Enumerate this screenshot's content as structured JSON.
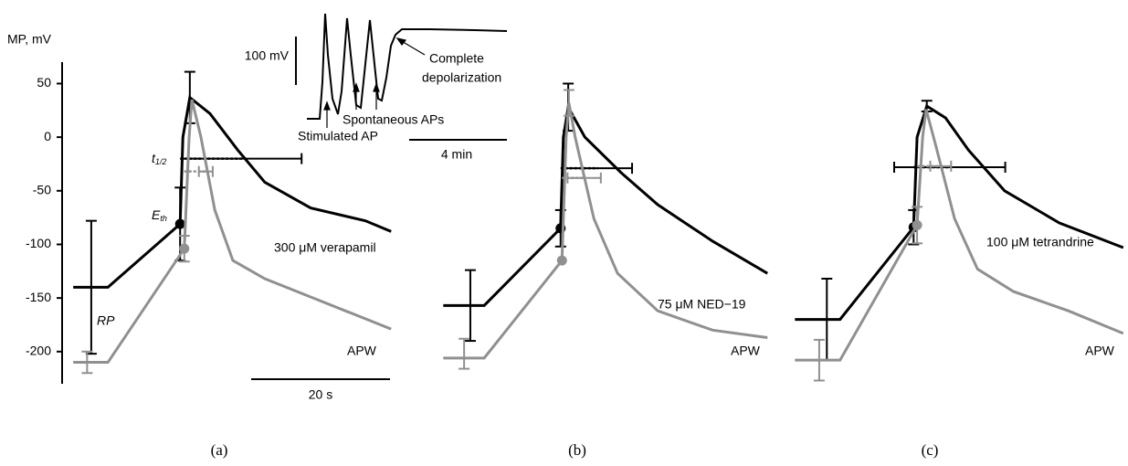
{
  "chart_data": [
    {
      "type": "line",
      "ylabel": "MP, mV",
      "caption": "(a)",
      "ylim": [
        -230,
        70
      ],
      "xlim": [
        0,
        49
      ],
      "yticks": [
        50,
        0,
        -50,
        -100,
        -150,
        -200
      ],
      "scalebar": {
        "value": 20,
        "label": "20 s"
      },
      "annotations": {
        "rp": "RP",
        "eth": {
          "text": "E",
          "sub": "th"
        },
        "thalf": {
          "text": "t",
          "sub": "1/2"
        }
      },
      "series": [
        {
          "name": "300 μM verapamil",
          "color": "#000000",
          "x": [
            1.6,
            6.6,
            17,
            17.4,
            18.4,
            21.3,
            25.3,
            29.2,
            35.8,
            43.7,
            47.4
          ],
          "values": [
            -140,
            -140,
            -81,
            0,
            37,
            22,
            -12,
            -42,
            -66,
            -78,
            -88
          ],
          "errorbars": [
            {
              "x": 4.2,
              "y": -140,
              "yerr": 62
            },
            {
              "x": 17,
              "y": -81,
              "yerr": 34
            },
            {
              "x": 18.4,
              "y": 37,
              "yerr": 24
            },
            {
              "x": 25.9,
              "y": -20,
              "xerr": 8.6
            }
          ],
          "points": [
            {
              "x": 17,
              "y": -81
            }
          ]
        },
        {
          "name": "APW",
          "color": "#909090",
          "x": [
            1.6,
            6.6,
            17.6,
            18.3,
            18.7,
            20,
            22,
            24.6,
            29.2,
            35.8,
            47.4
          ],
          "values": [
            -210,
            -210,
            -104,
            0,
            35,
            0,
            -68,
            -115,
            -132,
            -149,
            -179
          ],
          "errorbars": [
            {
              "x": 3.6,
              "y": -210,
              "yerr": 10
            },
            {
              "x": 17.6,
              "y": -104,
              "yerr": 12
            },
            {
              "x": 20.7,
              "y": -32,
              "xerr": 1
            }
          ],
          "points": [
            {
              "x": 17.6,
              "y": -104
            }
          ]
        }
      ]
    },
    {
      "type": "line",
      "caption": "(b)",
      "ylim": [
        -230,
        70
      ],
      "xlim": [
        0,
        49
      ],
      "series": [
        {
          "name": "75 μM NED−19",
          "color": "#000000",
          "x": [
            0.7,
            6.6,
            17.6,
            18,
            18.7,
            21.1,
            26.3,
            31.6,
            39.5,
            47.4
          ],
          "values": [
            -157,
            -157,
            -85,
            0,
            28,
            0,
            -33,
            -63,
            -97,
            -127
          ],
          "errorbars": [
            {
              "x": 4.6,
              "y": -157,
              "yerr": 33
            },
            {
              "x": 17.6,
              "y": -85,
              "yerr": 17
            },
            {
              "x": 18.7,
              "y": 28,
              "yerr": 22
            },
            {
              "x": 23,
              "y": -29,
              "xerr": 4.9
            }
          ],
          "points": [
            {
              "x": 17.6,
              "y": -85
            }
          ]
        },
        {
          "name": "APW",
          "color": "#909090",
          "x": [
            0.7,
            6.6,
            17.8,
            18.4,
            18.8,
            19.7,
            22.4,
            25.8,
            31.6,
            39.5,
            47.4
          ],
          "values": [
            -206,
            -206,
            -115,
            0,
            32,
            0,
            -76,
            -127,
            -162,
            -180,
            -187
          ],
          "errorbars": [
            {
              "x": 3.7,
              "y": -202,
              "yerr": 14
            },
            {
              "x": 18.8,
              "y": 32,
              "yerr": 12
            },
            {
              "x": 21,
              "y": -38,
              "xerr": 2.4
            }
          ],
          "points": [
            {
              "x": 17.8,
              "y": -115
            }
          ]
        }
      ]
    },
    {
      "type": "line",
      "caption": "(c)",
      "ylim": [
        -230,
        70
      ],
      "xlim": [
        0,
        49
      ],
      "series": [
        {
          "name": "100 μM tetrandrine",
          "color": "#000000",
          "x": [
            0.7,
            7.2,
            17.8,
            18.3,
            19.7,
            22.4,
            25.7,
            30.9,
            38.8,
            48
          ],
          "values": [
            -170,
            -170,
            -84,
            0,
            29,
            18,
            -12,
            -50,
            -80,
            -103
          ],
          "errorbars": [
            {
              "x": 5.3,
              "y": -170,
              "yerr": 38
            },
            {
              "x": 17.8,
              "y": -84,
              "yerr": 16
            },
            {
              "x": 19.7,
              "y": 29,
              "yerr": 5
            },
            {
              "x": 23,
              "y": -28,
              "xerr": 8
            }
          ],
          "points": [
            {
              "x": 17.8,
              "y": -84
            }
          ]
        },
        {
          "name": "APW",
          "color": "#909090",
          "x": [
            0.7,
            7.2,
            18.3,
            19.1,
            19.6,
            21,
            23.7,
            27,
            32.2,
            40.1,
            48
          ],
          "values": [
            -208,
            -208,
            -82,
            0,
            26,
            -8,
            -76,
            -123,
            -144,
            -162,
            -183
          ],
          "errorbars": [
            {
              "x": 4.2,
              "y": -208,
              "yerr": 19
            },
            {
              "x": 18.3,
              "y": -82,
              "yerr": 17
            },
            {
              "x": 21.7,
              "y": -27,
              "xerr": 1.5
            }
          ],
          "points": [
            {
              "x": 18.3,
              "y": -82
            }
          ]
        }
      ]
    }
  ],
  "inset": {
    "vbar": "100 mV",
    "hbar": "4 min",
    "stimulated": "Stimulated AP",
    "spontaneous": "Spontaneous APs",
    "complete": [
      "Complete",
      "depolarization"
    ]
  }
}
